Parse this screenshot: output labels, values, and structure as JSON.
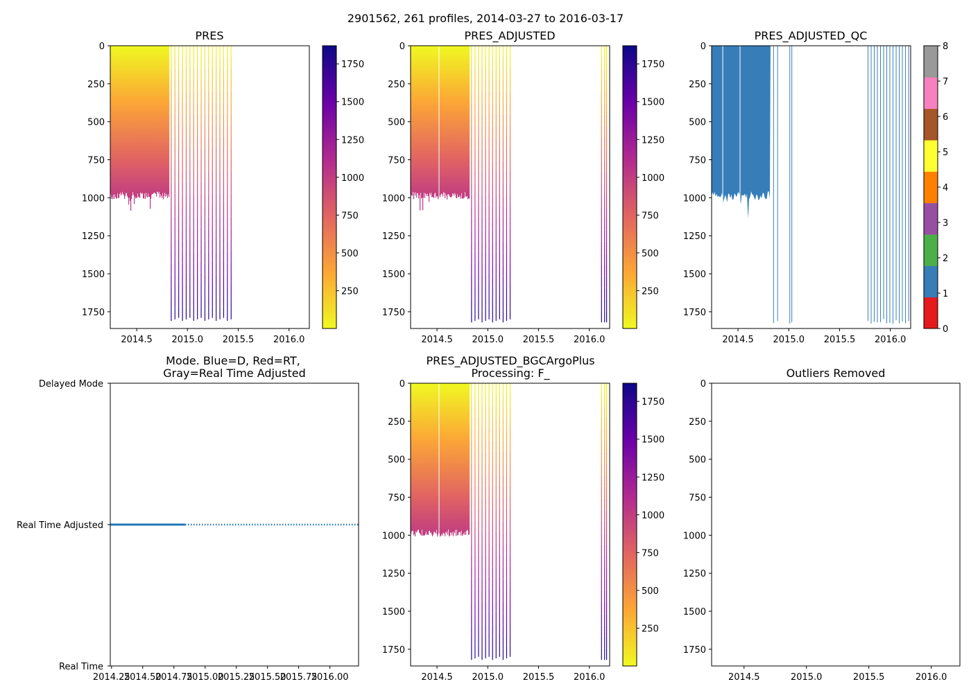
{
  "figure": {
    "title": "2901562, 261 profiles, 2014-03-27 to 2016-03-17"
  },
  "colors": {
    "plasma": [
      "#f0f921",
      "#fca636",
      "#e16462",
      "#b12a90",
      "#6a00a8",
      "#0d0887"
    ],
    "qc_bar": "#377eb8",
    "mode_line": "#1f77b4",
    "qc_palette": [
      "#e41a1c",
      "#377eb8",
      "#4daf4a",
      "#984ea3",
      "#ff7f00",
      "#ffff33",
      "#a65628",
      "#f781bf",
      "#999999"
    ]
  },
  "chart_data": [
    {
      "id": "pres",
      "type": "heatmap",
      "title": "PRES",
      "xlim": [
        2014.24,
        2016.2
      ],
      "ylim": [
        1860,
        0
      ],
      "x_ticks": [
        "2014.5",
        "2015.0",
        "2015.5",
        "2016.0"
      ],
      "y_ticks": [
        "0",
        "250",
        "500",
        "750",
        "1000",
        "1250",
        "1500",
        "1750"
      ],
      "colorbar": {
        "range": [
          0,
          1870
        ],
        "ticks": [
          "1750",
          "1500",
          "1250",
          "1000",
          "750",
          "500",
          "250"
        ]
      },
      "dense_segment": {
        "x_start": 2014.24,
        "x_end": 2014.82,
        "depth_base": 975,
        "depth_jitter": 50
      },
      "sparse_profiles": {
        "x_start": 2014.84,
        "x_end": 2015.43,
        "count": 17,
        "max_depth": 1810
      }
    },
    {
      "id": "pres_adjusted",
      "type": "heatmap",
      "title": "PRES_ADJUSTED",
      "xlim": [
        2014.24,
        2016.2
      ],
      "ylim": [
        1860,
        0
      ],
      "x_ticks": [
        "2014.5",
        "2015.0",
        "2015.5",
        "2016.0"
      ],
      "y_ticks": [
        "0",
        "250",
        "500",
        "750",
        "1000",
        "1250",
        "1500",
        "1750"
      ],
      "colorbar": {
        "range": [
          0,
          1870
        ],
        "ticks": [
          "1750",
          "1500",
          "1250",
          "1000",
          "750",
          "500",
          "250"
        ]
      },
      "dense_segment": {
        "x_start": 2014.24,
        "x_end": 2014.82,
        "depth_base": 975,
        "depth_jitter": 50
      },
      "sparse_profiles": {
        "x_start": 2014.84,
        "x_end": 2015.22,
        "count": 12,
        "max_depth": 1820
      },
      "late_profiles": {
        "x": [
          2016.12,
          2016.15,
          2016.17
        ],
        "max_depth": 1820
      }
    },
    {
      "id": "pres_adjusted_qc",
      "type": "heatmap",
      "title": "PRES_ADJUSTED_QC",
      "xlim": [
        2014.24,
        2016.2
      ],
      "ylim": [
        1860,
        0
      ],
      "x_ticks": [
        "2014.5",
        "2015.0",
        "2015.5",
        "2016.0"
      ],
      "y_ticks": [
        "0",
        "250",
        "500",
        "750",
        "1000",
        "1250",
        "1500",
        "1750"
      ],
      "colorbar": {
        "range": [
          0,
          8
        ],
        "ticks": [
          "0",
          "1",
          "2",
          "3",
          "4",
          "5",
          "6",
          "7",
          "8"
        ]
      },
      "qc_value": 1,
      "dense_segment": {
        "x_start": 2014.24,
        "x_end": 2014.82,
        "depth_base": 975,
        "depth_jitter": 60
      },
      "early_profiles": {
        "x": [
          2014.85,
          2014.89,
          2015.01,
          2015.03
        ],
        "max_depth": 1830
      },
      "late_profiles": {
        "x_start": 2015.78,
        "x_end": 2016.18,
        "count": 14,
        "max_depth": 1830
      }
    },
    {
      "id": "mode",
      "type": "line",
      "title_line1": "Mode. Blue=D, Red=RT,",
      "title_line2": "Gray=Real Time Adjusted",
      "xlim": [
        2014.24,
        2016.23
      ],
      "y_categories": [
        "Delayed Mode",
        "Real Time Adjusted",
        "Real Time"
      ],
      "x_ticks": [
        "2014.25",
        "2014.50",
        "2014.75",
        "2015.00",
        "2015.25",
        "2015.50",
        "2015.75",
        "2016.00"
      ],
      "series": [
        {
          "name": "solid",
          "x_start": 2014.24,
          "x_end": 2014.84,
          "value": "Real Time Adjusted"
        },
        {
          "name": "dotted",
          "x_start": 2014.84,
          "x_end": 2016.23,
          "value": "Real Time Adjusted"
        }
      ]
    },
    {
      "id": "bgcargoplus",
      "type": "heatmap",
      "title_line1": "PRES_ADJUSTED_BGCArgoPlus",
      "title_line2": "Processing: F_",
      "xlim": [
        2014.24,
        2016.2
      ],
      "ylim": [
        1860,
        0
      ],
      "x_ticks": [
        "2014.5",
        "2015.0",
        "2015.5",
        "2016.0"
      ],
      "y_ticks": [
        "0",
        "250",
        "500",
        "750",
        "1000",
        "1250",
        "1500",
        "1750"
      ],
      "colorbar": {
        "range": [
          0,
          1870
        ],
        "ticks": [
          "1750",
          "1500",
          "1250",
          "1000",
          "750",
          "500",
          "250"
        ]
      },
      "dense_segment": {
        "x_start": 2014.24,
        "x_end": 2014.82,
        "depth_base": 975,
        "depth_jitter": 50
      },
      "sparse_profiles": {
        "x_start": 2014.84,
        "x_end": 2015.22,
        "count": 12,
        "max_depth": 1820
      },
      "late_profiles": {
        "x": [
          2016.12,
          2016.15,
          2016.17
        ],
        "max_depth": 1820
      }
    },
    {
      "id": "outliers",
      "type": "heatmap",
      "title": "Outliers Removed",
      "xlim": [
        2014.24,
        2016.23
      ],
      "ylim": [
        1860,
        0
      ],
      "x_ticks": [
        "2014.5",
        "2015.0",
        "2015.5",
        "2016.0"
      ],
      "y_ticks": [
        "0",
        "250",
        "500",
        "750",
        "1000",
        "1250",
        "1500",
        "1750"
      ]
    }
  ]
}
